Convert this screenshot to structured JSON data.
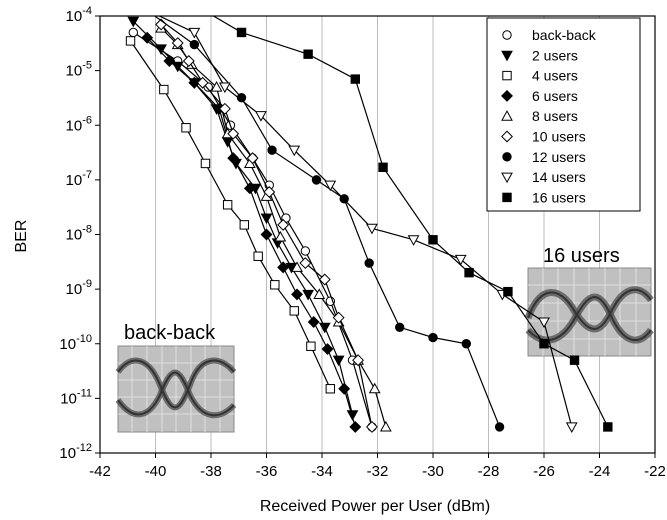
{
  "chart_data": {
    "type": "scatter",
    "title": "",
    "xlabel": "Received Power per User (dBm)",
    "ylabel": "BER",
    "xlim": [
      -42,
      -22
    ],
    "ylim_exponent": [
      -12,
      -4
    ],
    "yscale": "log",
    "x_ticks": [
      "-42",
      "-40",
      "-38",
      "-36",
      "-34",
      "-32",
      "-30",
      "-28",
      "-26",
      "-24",
      "-22"
    ],
    "y_ticks": [
      {
        "base": "10",
        "exp": "-4"
      },
      {
        "base": "10",
        "exp": "-5"
      },
      {
        "base": "10",
        "exp": "-6"
      },
      {
        "base": "10",
        "exp": "-7"
      },
      {
        "base": "10",
        "exp": "-8"
      },
      {
        "base": "10",
        "exp": "-9"
      },
      {
        "base": "10",
        "exp": "-10"
      },
      {
        "base": "10",
        "exp": "-11"
      },
      {
        "base": "10",
        "exp": "-12"
      }
    ],
    "grid": "vertical",
    "legend_position": "top-right",
    "series": [
      {
        "name": "back-back",
        "marker": "circle-open",
        "x": [
          -40.8,
          -39.2,
          -38.1,
          -37.3,
          -36.5,
          -35.9,
          -35.3,
          -34.6,
          -33.7,
          -32.9,
          -32.2
        ],
        "y": [
          5e-05,
          1.5e-05,
          5e-06,
          1e-06,
          2.5e-07,
          8e-08,
          2e-08,
          5e-09,
          6e-10,
          5e-11,
          3e-12
        ]
      },
      {
        "name": "2 users",
        "marker": "triangle-down-filled",
        "x": [
          -40.8,
          -39.8,
          -39.2,
          -38.6,
          -37.8,
          -37.4,
          -37.1,
          -36.4,
          -36.0,
          -35.6,
          -35.1,
          -34.5,
          -33.9,
          -33.4,
          -32.9
        ],
        "y": [
          8e-05,
          2.5e-05,
          1.2e-05,
          6e-06,
          2e-06,
          5e-07,
          2e-07,
          7e-08,
          2e-08,
          7e-09,
          2.5e-09,
          8e-10,
          2e-10,
          5e-11,
          5e-12
        ]
      },
      {
        "name": "4 users",
        "marker": "square-open",
        "x": [
          -40.9,
          -39.7,
          -38.9,
          -38.2,
          -37.4,
          -36.8,
          -36.3,
          -35.7,
          -35.0,
          -34.4,
          -33.7
        ],
        "y": [
          3.5e-05,
          4.5e-06,
          9e-07,
          2e-07,
          3.5e-08,
          1.5e-08,
          4e-09,
          1.2e-09,
          4e-10,
          9e-11,
          1.5e-11
        ]
      },
      {
        "name": "6 users",
        "marker": "diamond-filled",
        "x": [
          -40.3,
          -39.5,
          -38.6,
          -37.7,
          -37.2,
          -36.6,
          -36.0,
          -35.4,
          -34.9,
          -34.3,
          -33.8,
          -33.2,
          -32.8
        ],
        "y": [
          4e-05,
          1.5e-05,
          6e-06,
          2e-06,
          2.5e-07,
          7e-08,
          1e-08,
          2.5e-09,
          8e-10,
          2.5e-10,
          8e-11,
          1.5e-11,
          3e-12
        ]
      },
      {
        "name": "8 users",
        "marker": "triangle-up-open",
        "x": [
          -39.8,
          -39.2,
          -38.7,
          -37.8,
          -37.4,
          -36.6,
          -36.0,
          -35.5,
          -34.9,
          -34.1,
          -33.4,
          -32.7,
          -32.1,
          -31.7
        ],
        "y": [
          6e-05,
          3e-05,
          1.3e-05,
          5e-06,
          7e-07,
          2e-07,
          5e-08,
          9e-09,
          2.5e-09,
          8e-10,
          2.5e-10,
          5e-11,
          1.5e-11,
          3e-12
        ]
      },
      {
        "name": "10 users",
        "marker": "diamond-open",
        "x": [
          -39.8,
          -39.2,
          -38.8,
          -38.3,
          -37.5,
          -37.2,
          -36.5,
          -35.9,
          -35.4,
          -34.6,
          -33.9,
          -33.4,
          -32.7,
          -32.2
        ],
        "y": [
          7e-05,
          3.2e-05,
          1.5e-05,
          6e-06,
          2e-06,
          7e-07,
          2.5e-07,
          6e-08,
          1.5e-08,
          3e-09,
          1.5e-09,
          3e-10,
          5e-11,
          3e-12
        ]
      },
      {
        "name": "12 users",
        "marker": "circle-filled",
        "x": [
          -40.5,
          -38.6,
          -36.9,
          -35.8,
          -34.2,
          -33.2,
          -32.3,
          -31.2,
          -30.0,
          -28.8,
          -27.6
        ],
        "y": [
          0.00015,
          3e-05,
          3.2e-06,
          3.5e-07,
          1e-07,
          4.5e-08,
          3e-09,
          2e-10,
          1.3e-10,
          1e-10,
          3e-12
        ]
      },
      {
        "name": "14 users",
        "marker": "triangle-down-open",
        "x": [
          -40.6,
          -38.6,
          -37.5,
          -36.2,
          -35.0,
          -33.7,
          -32.2,
          -30.7,
          -29.0,
          -27.5,
          -26.0,
          -25.0
        ],
        "y": [
          0.00015,
          5e-05,
          5e-06,
          1.5e-06,
          3.5e-07,
          8e-08,
          1.3e-08,
          8e-09,
          3.5e-09,
          8e-10,
          2.5e-10,
          3e-12
        ]
      },
      {
        "name": "16 users",
        "marker": "square-filled",
        "x": [
          -38.5,
          -36.9,
          -34.5,
          -32.8,
          -31.8,
          -30.0,
          -28.7,
          -27.3,
          -26.0,
          -24.9,
          -23.7
        ],
        "y": [
          0.00015,
          5e-05,
          2e-05,
          7e-06,
          1.7e-07,
          8e-09,
          2e-09,
          9e-10,
          1e-10,
          5e-11,
          3e-12
        ]
      }
    ]
  },
  "insets": {
    "left_label": "back-back",
    "right_label": "16 users"
  }
}
